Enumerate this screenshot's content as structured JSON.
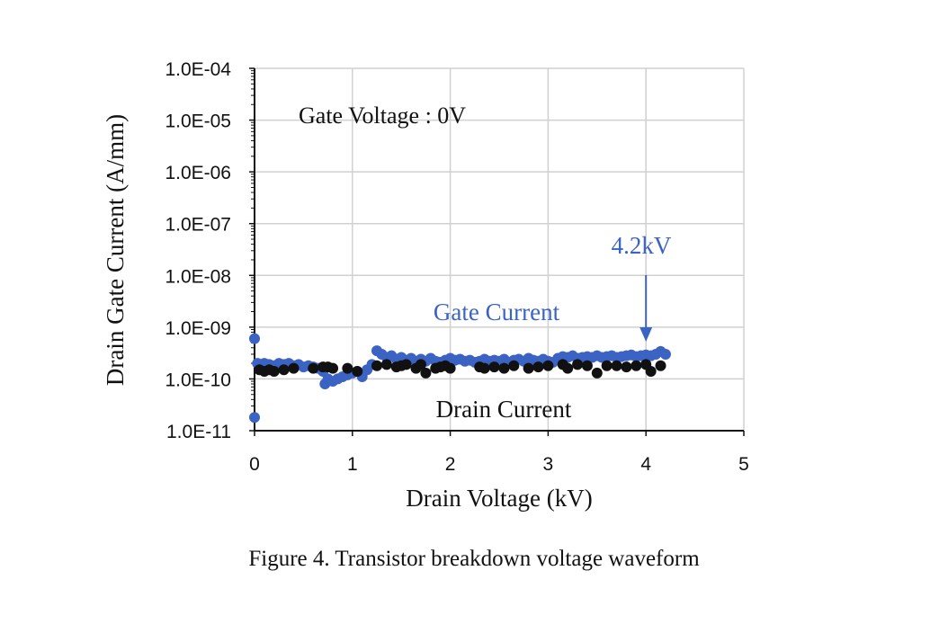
{
  "caption": "Figure 4.   Transistor breakdown voltage waveform",
  "chart_data": {
    "type": "scatter",
    "title": "",
    "xlabel": "Drain Voltage (kV)",
    "ylabel": "Drain Gate Current (A/mm)",
    "xlim": [
      0,
      5
    ],
    "ylim": [
      1e-11,
      0.0001
    ],
    "y_scale": "log",
    "grid": true,
    "x_ticks": [
      0,
      1,
      2,
      3,
      4,
      5
    ],
    "x_tick_labels": [
      "0",
      "1",
      "2",
      "3",
      "4",
      "5"
    ],
    "y_ticks": [
      1e-11,
      1e-10,
      1e-09,
      1e-08,
      1e-07,
      1e-06,
      1e-05,
      0.0001
    ],
    "y_tick_labels": [
      "1.0E-11",
      "1.0E-10",
      "1.0E-09",
      "1.0E-08",
      "1.0E-07",
      "1.0E-06",
      "1.0E-05",
      "1.0E-04"
    ],
    "series": [
      {
        "name": "Gate Current",
        "color": "#3a63c4",
        "points": [
          [
            0.0,
            6e-10
          ],
          [
            0.0,
            1.8e-11
          ],
          [
            0.03,
            2e-10
          ],
          [
            0.07,
            1.9e-10
          ],
          [
            0.1,
            2e-10
          ],
          [
            0.15,
            1.9e-10
          ],
          [
            0.2,
            1.8e-10
          ],
          [
            0.25,
            2e-10
          ],
          [
            0.3,
            1.9e-10
          ],
          [
            0.35,
            2e-10
          ],
          [
            0.4,
            1.8e-10
          ],
          [
            0.45,
            1.9e-10
          ],
          [
            0.5,
            1.7e-10
          ],
          [
            0.55,
            1.8e-10
          ],
          [
            0.6,
            1.7e-10
          ],
          [
            0.65,
            1.6e-10
          ],
          [
            0.7,
            1.4e-10
          ],
          [
            0.72,
            8e-11
          ],
          [
            0.75,
            1e-10
          ],
          [
            0.8,
            9e-11
          ],
          [
            0.85,
            1e-10
          ],
          [
            0.9,
            1.1e-10
          ],
          [
            0.95,
            1.2e-10
          ],
          [
            1.0,
            1.3e-10
          ],
          [
            1.05,
            1.4e-10
          ],
          [
            1.1,
            1.1e-10
          ],
          [
            1.15,
            1.5e-10
          ],
          [
            1.2,
            1.9e-10
          ],
          [
            1.25,
            3.5e-10
          ],
          [
            1.3,
            3e-10
          ],
          [
            1.35,
            2.6e-10
          ],
          [
            1.4,
            2.8e-10
          ],
          [
            1.45,
            2.4e-10
          ],
          [
            1.5,
            2.6e-10
          ],
          [
            1.55,
            2.3e-10
          ],
          [
            1.6,
            2.5e-10
          ],
          [
            1.65,
            2.2e-10
          ],
          [
            1.7,
            2.4e-10
          ],
          [
            1.75,
            2.2e-10
          ],
          [
            1.8,
            2.5e-10
          ],
          [
            1.85,
            2.2e-10
          ],
          [
            1.9,
            2.1e-10
          ],
          [
            1.95,
            2.3e-10
          ],
          [
            2.0,
            2.5e-10
          ],
          [
            2.05,
            2.3e-10
          ],
          [
            2.1,
            2.4e-10
          ],
          [
            2.15,
            2.2e-10
          ],
          [
            2.2,
            2.3e-10
          ],
          [
            2.25,
            2.1e-10
          ],
          [
            2.3,
            2.2e-10
          ],
          [
            2.35,
            2.4e-10
          ],
          [
            2.4,
            2.2e-10
          ],
          [
            2.45,
            2.3e-10
          ],
          [
            2.5,
            2.2e-10
          ],
          [
            2.55,
            2.4e-10
          ],
          [
            2.6,
            2.1e-10
          ],
          [
            2.65,
            2.3e-10
          ],
          [
            2.7,
            2.4e-10
          ],
          [
            2.75,
            2.2e-10
          ],
          [
            2.8,
            2.5e-10
          ],
          [
            2.85,
            2.3e-10
          ],
          [
            2.9,
            2.2e-10
          ],
          [
            2.95,
            2.4e-10
          ],
          [
            3.0,
            2.2e-10
          ],
          [
            3.05,
            2.1e-10
          ],
          [
            3.1,
            2.5e-10
          ],
          [
            3.15,
            2.7e-10
          ],
          [
            3.2,
            2.6e-10
          ],
          [
            3.25,
            2.8e-10
          ],
          [
            3.3,
            2.5e-10
          ],
          [
            3.35,
            2.6e-10
          ],
          [
            3.4,
            2.7e-10
          ],
          [
            3.45,
            2.6e-10
          ],
          [
            3.5,
            2.8e-10
          ],
          [
            3.55,
            2.6e-10
          ],
          [
            3.6,
            2.7e-10
          ],
          [
            3.65,
            2.8e-10
          ],
          [
            3.7,
            2.6e-10
          ],
          [
            3.75,
            2.7e-10
          ],
          [
            3.8,
            2.8e-10
          ],
          [
            3.85,
            2.9e-10
          ],
          [
            3.9,
            2.7e-10
          ],
          [
            3.95,
            2.8e-10
          ],
          [
            4.0,
            2.9e-10
          ],
          [
            4.05,
            2.8e-10
          ],
          [
            4.1,
            3e-10
          ],
          [
            4.15,
            3.4e-10
          ],
          [
            4.2,
            3e-10
          ]
        ]
      },
      {
        "name": "Drain Current",
        "color": "#111111",
        "points": [
          [
            0.05,
            1.5e-10
          ],
          [
            0.1,
            1.4e-10
          ],
          [
            0.15,
            1.5e-10
          ],
          [
            0.2,
            1.4e-10
          ],
          [
            0.3,
            1.5e-10
          ],
          [
            0.4,
            1.6e-10
          ],
          [
            0.6,
            1.6e-10
          ],
          [
            0.7,
            1.7e-10
          ],
          [
            0.75,
            1.7e-10
          ],
          [
            0.8,
            1.6e-10
          ],
          [
            0.95,
            1.6e-10
          ],
          [
            1.05,
            1.4e-10
          ],
          [
            1.25,
            1.8e-10
          ],
          [
            1.35,
            1.9e-10
          ],
          [
            1.45,
            1.7e-10
          ],
          [
            1.5,
            1.8e-10
          ],
          [
            1.55,
            1.9e-10
          ],
          [
            1.65,
            1.6e-10
          ],
          [
            1.7,
            1.9e-10
          ],
          [
            1.75,
            1.3e-10
          ],
          [
            1.85,
            1.6e-10
          ],
          [
            1.9,
            1.7e-10
          ],
          [
            1.95,
            1.8e-10
          ],
          [
            2.0,
            1.6e-10
          ],
          [
            2.3,
            1.7e-10
          ],
          [
            2.35,
            1.6e-10
          ],
          [
            2.45,
            1.7e-10
          ],
          [
            2.55,
            1.6e-10
          ],
          [
            2.65,
            1.8e-10
          ],
          [
            2.8,
            1.6e-10
          ],
          [
            2.9,
            1.7e-10
          ],
          [
            3.0,
            1.8e-10
          ],
          [
            3.15,
            1.9e-10
          ],
          [
            3.2,
            1.6e-10
          ],
          [
            3.3,
            1.9e-10
          ],
          [
            3.4,
            1.8e-10
          ],
          [
            3.5,
            1.3e-10
          ],
          [
            3.6,
            1.8e-10
          ],
          [
            3.7,
            1.8e-10
          ],
          [
            3.8,
            1.7e-10
          ],
          [
            3.9,
            1.8e-10
          ],
          [
            4.0,
            1.9e-10
          ],
          [
            4.05,
            1.4e-10
          ],
          [
            4.15,
            1.8e-10
          ]
        ]
      }
    ],
    "annotations": {
      "gate_voltage": "Gate Voltage : 0V",
      "breakdown": "4.2kV",
      "breakdown_x": 4.0,
      "gate_label": "Gate Current",
      "drain_label": "Drain Current"
    }
  }
}
